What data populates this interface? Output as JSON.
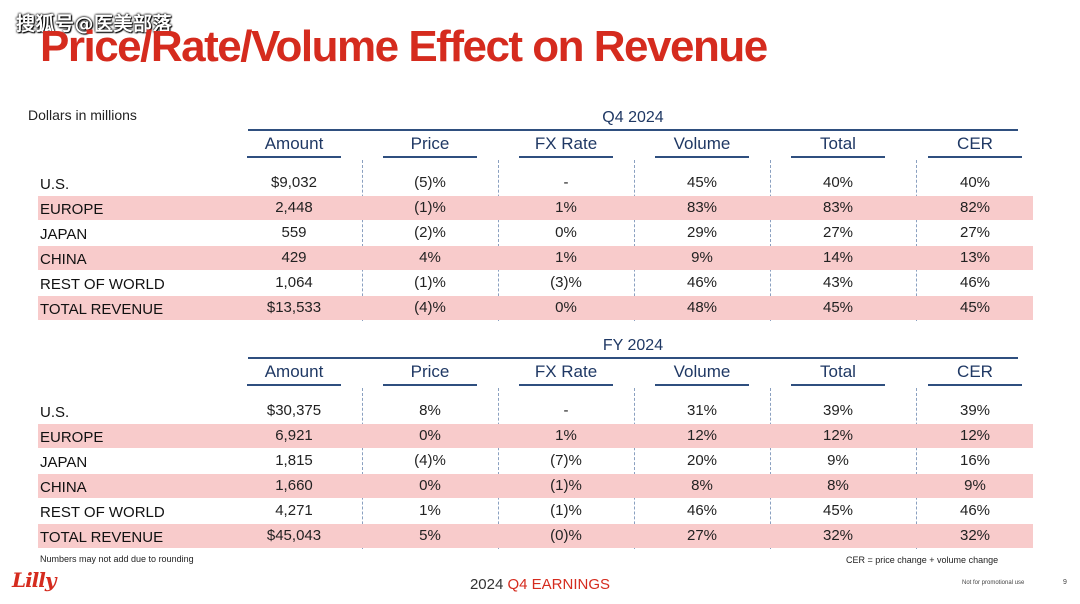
{
  "watermark": "搜狐号@医美部落",
  "title": "Price/Rate/Volume Effect on Revenue",
  "units_note": "Dollars in millions",
  "columns": [
    "Amount",
    "Price",
    "FX Rate",
    "Volume",
    "Total",
    "CER"
  ],
  "tables": [
    {
      "period": "Q4 2024",
      "rows": [
        {
          "label": "U.S.",
          "cells": [
            "$9,032",
            "(5)%",
            "-",
            "45%",
            "40%",
            "40%"
          ]
        },
        {
          "label": "EUROPE",
          "cells": [
            "2,448",
            "(1)%",
            "1%",
            "83%",
            "83%",
            "82%"
          ]
        },
        {
          "label": "JAPAN",
          "cells": [
            "559",
            "(2)%",
            "0%",
            "29%",
            "27%",
            "27%"
          ]
        },
        {
          "label": "CHINA",
          "cells": [
            "429",
            "4%",
            "1%",
            "9%",
            "14%",
            "13%"
          ]
        },
        {
          "label": "REST OF WORLD",
          "cells": [
            "1,064",
            "(1)%",
            "(3)%",
            "46%",
            "43%",
            "46%"
          ]
        },
        {
          "label": "TOTAL REVENUE",
          "cells": [
            "$13,533",
            "(4)%",
            "0%",
            "48%",
            "45%",
            "45%"
          ]
        }
      ]
    },
    {
      "period": "FY 2024",
      "rows": [
        {
          "label": "U.S.",
          "cells": [
            "$30,375",
            "8%",
            "-",
            "31%",
            "39%",
            "39%"
          ]
        },
        {
          "label": "EUROPE",
          "cells": [
            "6,921",
            "0%",
            "1%",
            "12%",
            "12%",
            "12%"
          ]
        },
        {
          "label": "JAPAN",
          "cells": [
            "1,815",
            "(4)%",
            "(7)%",
            "20%",
            "9%",
            "16%"
          ]
        },
        {
          "label": "CHINA",
          "cells": [
            "1,660",
            "0%",
            "(1)%",
            "8%",
            "8%",
            "9%"
          ]
        },
        {
          "label": "REST OF WORLD",
          "cells": [
            "4,271",
            "1%",
            "(1)%",
            "46%",
            "45%",
            "46%"
          ]
        },
        {
          "label": "TOTAL REVENUE",
          "cells": [
            "$45,043",
            "5%",
            "(0)%",
            "27%",
            "32%",
            "32%"
          ]
        }
      ]
    }
  ],
  "footnote_left": "Numbers may not add due to rounding",
  "footnote_right": "CER = price change + volume change",
  "logo_text": "Lilly",
  "footer_year": "2024",
  "footer_earnings": "Q4 EARNINGS",
  "disclaimer": "Not for promotional use",
  "page_number": "9"
}
